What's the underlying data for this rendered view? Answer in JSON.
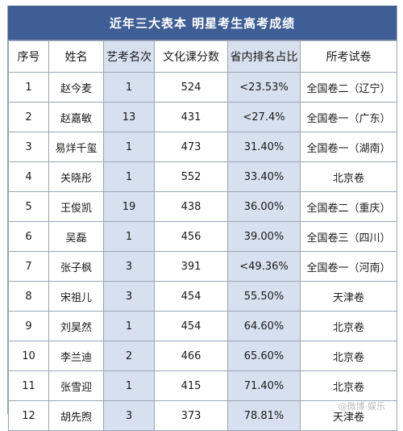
{
  "title": "近年三大表本 明星考生高考成绩",
  "headers": [
    "序号",
    "姓名",
    "艺考名次",
    "文化课分数",
    "省内排名占比",
    "所考试卷"
  ],
  "rows": [
    [
      "1",
      "赵今麦",
      "1",
      "524",
      "<23.53%",
      "全国卷二（辽宁）"
    ],
    [
      "2",
      "赵嘉敏",
      "13",
      "431",
      "<27.4%",
      "全国卷一（广东）"
    ],
    [
      "3",
      "易烊千玺",
      "1",
      "473",
      "31.40%",
      "全国卷一（湖南）"
    ],
    [
      "4",
      "关晓彤",
      "1",
      "552",
      "33.40%",
      "北京卷"
    ],
    [
      "5",
      "王俊凯",
      "19",
      "438",
      "36.00%",
      "全国卷二（重庆）"
    ],
    [
      "6",
      "吴磊",
      "1",
      "456",
      "39.00%",
      "全国卷三（四川）"
    ],
    [
      "7",
      "张子枫",
      "3",
      "391",
      "<49.36%",
      "全国卷一（河南）"
    ],
    [
      "8",
      "宋祖儿",
      "3",
      "454",
      "55.50%",
      "天津卷"
    ],
    [
      "9",
      "刘昊然",
      "1",
      "454",
      "64.60%",
      "北京卷"
    ],
    [
      "10",
      "李兰迪",
      "2",
      "466",
      "65.60%",
      "北京卷"
    ],
    [
      "11",
      "张雪迎",
      "1",
      "415",
      "71.40%",
      "北京卷"
    ],
    [
      "12",
      "胡先煦",
      "3",
      "373",
      "78.81%",
      "天津卷"
    ]
  ],
  "watermark": "@微博·娱乐"
}
